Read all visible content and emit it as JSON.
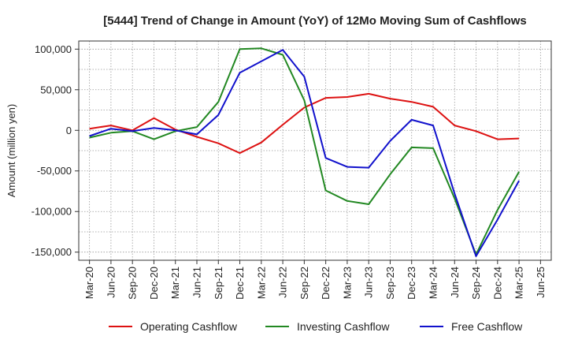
{
  "chart_data": {
    "type": "line",
    "title": "[5444]  Trend of Change in Amount (YoY) of 12Mo Moving Sum of Cashflows",
    "xlabel": "",
    "ylabel": "Amount (million yen)",
    "ylim": [
      -160000,
      110000
    ],
    "yticks": [
      100000,
      50000,
      0,
      -50000,
      -100000,
      -150000
    ],
    "ytick_labels": [
      "100,000",
      "50,000",
      "0",
      "-50,000",
      "-100,000",
      "-150,000"
    ],
    "categories": [
      "Mar-20",
      "Jun-20",
      "Sep-20",
      "Dec-20",
      "Mar-21",
      "Jun-21",
      "Sep-21",
      "Dec-21",
      "Mar-22",
      "Jun-22",
      "Sep-22",
      "Dec-22",
      "Mar-23",
      "Jun-23",
      "Sep-23",
      "Dec-23",
      "Mar-24",
      "Jun-24",
      "Sep-24",
      "Dec-24",
      "Mar-25",
      "Jun-25"
    ],
    "grid": true,
    "legend_position": "bottom",
    "series": [
      {
        "name": "Operating Cashflow",
        "color": "#dd1111",
        "values": [
          2000,
          6000,
          0,
          15000,
          1000,
          -8000,
          -16000,
          -28000,
          -15000,
          7000,
          28000,
          40000,
          41000,
          45000,
          39000,
          35000,
          29000,
          6000,
          -1000,
          -11000,
          -10000,
          null
        ]
      },
      {
        "name": "Investing Cashflow",
        "color": "#228822",
        "values": [
          -9000,
          -3000,
          -1000,
          -11000,
          -1000,
          4000,
          35000,
          100000,
          101000,
          93000,
          37000,
          -74000,
          -87000,
          -91000,
          -54000,
          -21000,
          -22000,
          -84000,
          -153000,
          -98000,
          -51000,
          null
        ]
      },
      {
        "name": "Free Cashflow",
        "color": "#1111cc",
        "values": [
          -7000,
          2000,
          -1000,
          3000,
          0,
          -5000,
          19000,
          71000,
          85000,
          99000,
          66000,
          -34000,
          -45000,
          -46000,
          -13000,
          13000,
          6000,
          -78000,
          -155000,
          -110000,
          -62000,
          null
        ]
      }
    ]
  }
}
